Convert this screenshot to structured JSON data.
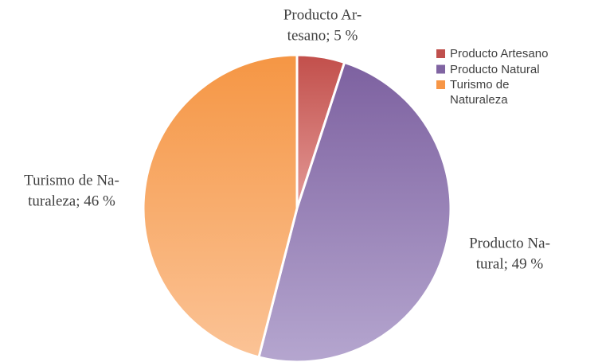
{
  "chart_data": {
    "type": "pie",
    "categories": [
      "Producto Artesano",
      "Producto Natural",
      "Turismo de Naturaleza"
    ],
    "values": [
      5,
      49,
      46
    ],
    "value_labels": [
      [
        "Producto Ar-",
        "tesano; 5 %"
      ],
      [
        "Producto Na-",
        "tural; 49 %"
      ],
      [
        "Turismo de Na-",
        "turaleza; 46 %"
      ]
    ],
    "colors": [
      "#c0504d",
      "#8064a2",
      "#f79646"
    ],
    "legend": "right"
  }
}
